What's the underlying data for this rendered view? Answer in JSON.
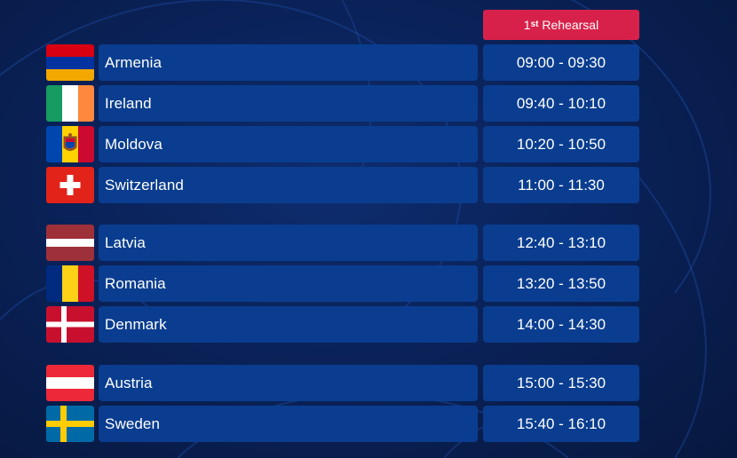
{
  "header": {
    "label_prefix": "1",
    "label_sup": "st",
    "label_main": " Rehearsal",
    "color": "#d8214a"
  },
  "rows": [
    {
      "country": "Armenia",
      "time": "09:00 - 09:30",
      "flag_icon": "armenia-flag-icon"
    },
    {
      "country": "Ireland",
      "time": "09:40 - 10:10",
      "flag_icon": "ireland-flag-icon"
    },
    {
      "country": "Moldova",
      "time": "10:20 - 10:50",
      "flag_icon": "moldova-flag-icon"
    },
    {
      "country": "Switzerland",
      "time": "11:00 - 11:30",
      "flag_icon": "switzerland-flag-icon"
    },
    {
      "country": "Latvia",
      "time": "12:40 - 13:10",
      "flag_icon": "latvia-flag-icon"
    },
    {
      "country": "Romania",
      "time": "13:20 - 13:50",
      "flag_icon": "romania-flag-icon"
    },
    {
      "country": "Denmark",
      "time": "14:00 - 14:30",
      "flag_icon": "denmark-flag-icon"
    },
    {
      "country": "Austria",
      "time": "15:00 - 15:30",
      "flag_icon": "austria-flag-icon"
    },
    {
      "country": "Sweden",
      "time": "15:40 - 16:10",
      "flag_icon": "sweden-flag-icon"
    }
  ],
  "colors": {
    "cell_background": "#0a3d8f",
    "page_background": "#0a2259",
    "text": "#ffffff"
  }
}
